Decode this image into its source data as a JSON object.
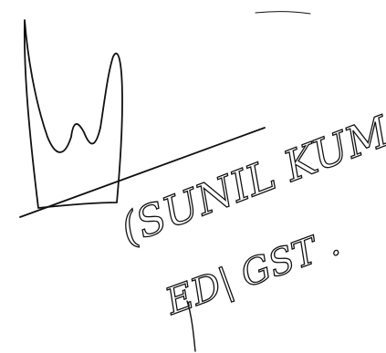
{
  "signature": {
    "name": "(SUNIL KUMAR)",
    "designation": "ED| GST ."
  }
}
